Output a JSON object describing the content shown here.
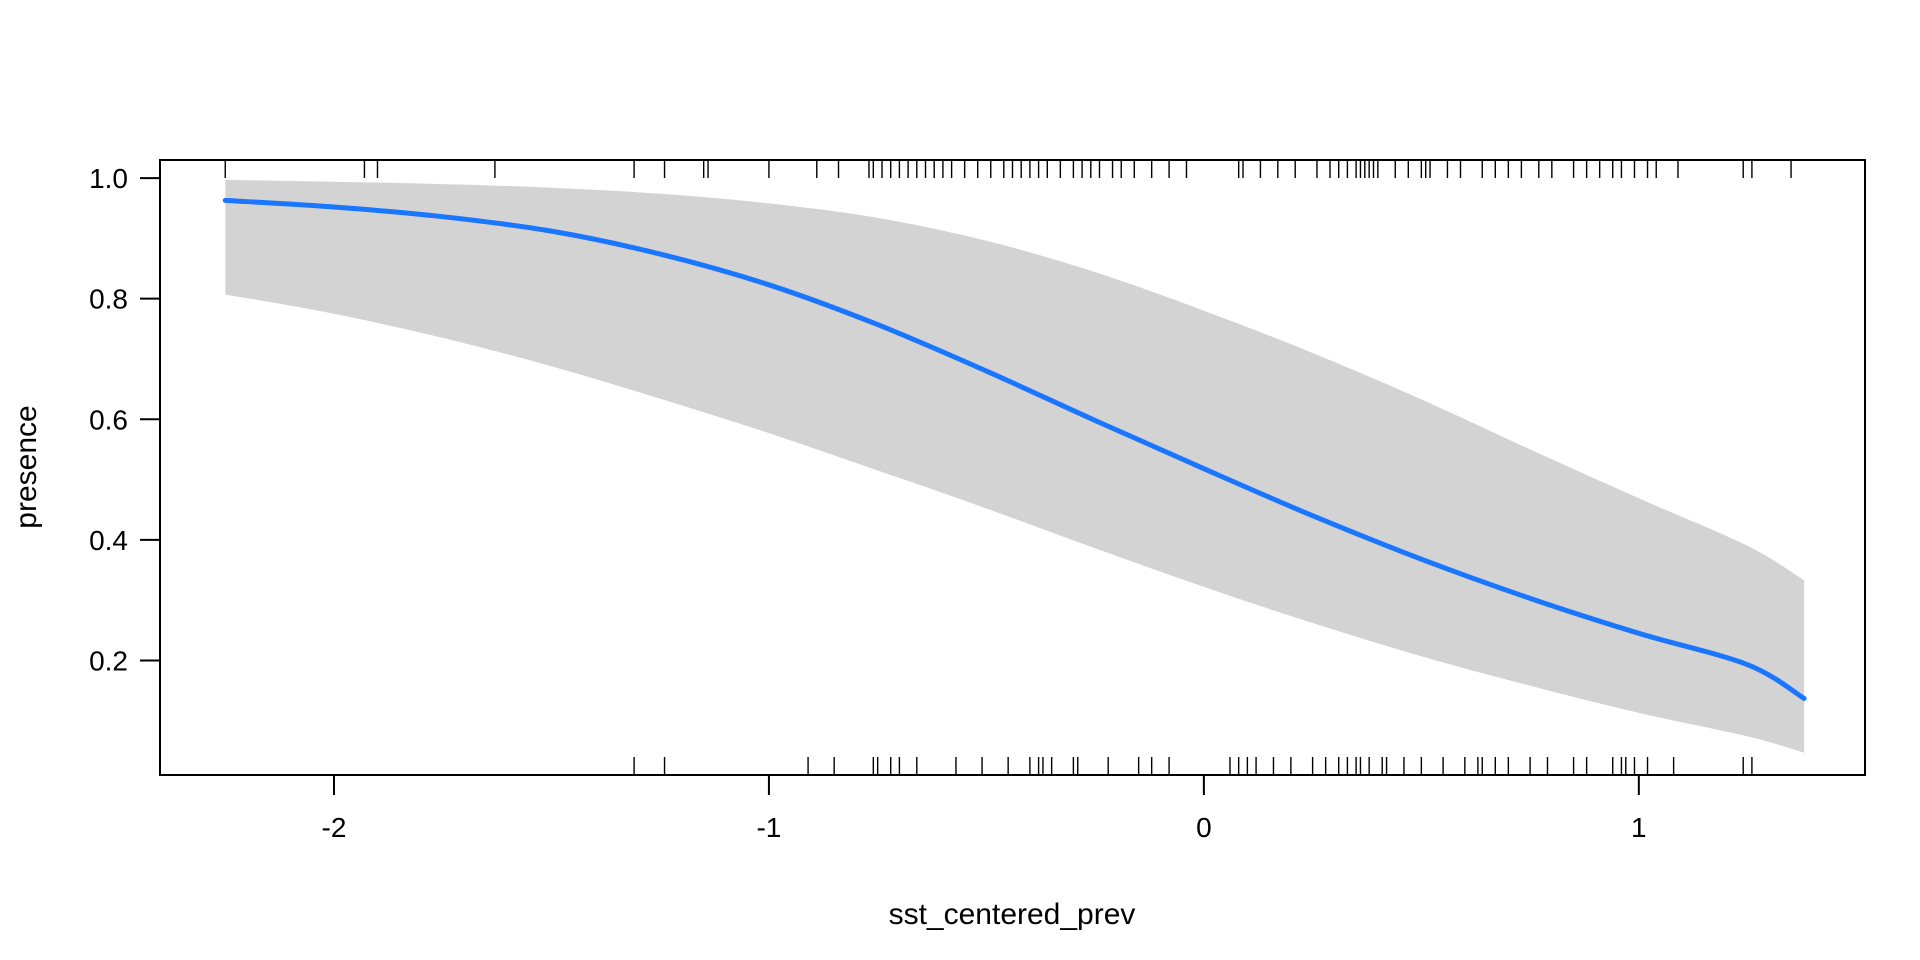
{
  "chart_data": {
    "type": "line",
    "title": "",
    "xlabel": "sst_centered_prev",
    "ylabel": "presence",
    "xlim": [
      -2.4,
      1.52
    ],
    "ylim": [
      0.01,
      1.03
    ],
    "x_ticks": [
      -2,
      -1,
      0,
      1
    ],
    "x_tick_labels": [
      "-2",
      "-1",
      "0",
      "1"
    ],
    "y_ticks": [
      0.2,
      0.4,
      0.6,
      0.8,
      1.0
    ],
    "y_tick_labels": [
      "0.2",
      "0.4",
      "0.6",
      "0.8",
      "1.0"
    ],
    "grid": false,
    "legend": "none",
    "colors": {
      "line": "#1a75ff",
      "band": "#d3d3d3",
      "axis": "#000000"
    },
    "series": [
      {
        "x": [
          -2.25,
          -2.0,
          -1.75,
          -1.5,
          -1.25,
          -1.0,
          -0.75,
          -0.5,
          -0.25,
          0.0,
          0.25,
          0.5,
          0.75,
          1.0,
          1.25,
          1.38
        ],
        "y": [
          0.963,
          0.952,
          0.936,
          0.912,
          0.874,
          0.823,
          0.757,
          0.68,
          0.598,
          0.518,
          0.44,
          0.368,
          0.303,
          0.245,
          0.193,
          0.137
        ],
        "lower": [
          0.807,
          0.775,
          0.735,
          0.688,
          0.634,
          0.577,
          0.515,
          0.452,
          0.386,
          0.322,
          0.262,
          0.207,
          0.158,
          0.113,
          0.074,
          0.047
        ],
        "upper": [
          0.997,
          0.994,
          0.99,
          0.984,
          0.974,
          0.958,
          0.934,
          0.896,
          0.844,
          0.78,
          0.71,
          0.633,
          0.55,
          0.469,
          0.39,
          0.333
        ]
      }
    ],
    "rug_top": [
      -2.25,
      -1.93,
      -1.9,
      -1.63,
      -1.31,
      -1.24,
      -1.15,
      -1.14,
      -1.0,
      -0.89,
      -0.84,
      -0.77,
      -0.76,
      -0.74,
      -0.72,
      -0.7,
      -0.68,
      -0.66,
      -0.64,
      -0.62,
      -0.6,
      -0.58,
      -0.55,
      -0.52,
      -0.49,
      -0.46,
      -0.44,
      -0.42,
      -0.4,
      -0.38,
      -0.36,
      -0.33,
      -0.3,
      -0.28,
      -0.26,
      -0.24,
      -0.21,
      -0.19,
      -0.16,
      -0.12,
      -0.08,
      -0.04,
      0.08,
      0.09,
      0.13,
      0.17,
      0.21,
      0.26,
      0.29,
      0.31,
      0.33,
      0.35,
      0.36,
      0.37,
      0.38,
      0.39,
      0.4,
      0.44,
      0.47,
      0.5,
      0.51,
      0.52,
      0.56,
      0.59,
      0.64,
      0.67,
      0.7,
      0.73,
      0.77,
      0.8,
      0.85,
      0.88,
      0.91,
      0.94,
      0.96,
      0.99,
      1.02,
      1.04,
      1.09,
      1.24,
      1.26,
      1.35
    ],
    "rug_bottom": [
      -1.31,
      -1.24,
      -0.91,
      -0.85,
      -0.76,
      -0.75,
      -0.72,
      -0.7,
      -0.66,
      -0.57,
      -0.51,
      -0.45,
      -0.4,
      -0.38,
      -0.37,
      -0.35,
      -0.3,
      -0.29,
      -0.22,
      -0.15,
      -0.12,
      -0.08,
      0.06,
      0.08,
      0.1,
      0.12,
      0.16,
      0.2,
      0.25,
      0.28,
      0.31,
      0.33,
      0.35,
      0.36,
      0.38,
      0.41,
      0.42,
      0.46,
      0.5,
      0.55,
      0.6,
      0.63,
      0.64,
      0.67,
      0.7,
      0.75,
      0.79,
      0.85,
      0.88,
      0.94,
      0.96,
      0.97,
      0.99,
      1.02,
      1.08,
      1.24,
      1.26
    ]
  }
}
